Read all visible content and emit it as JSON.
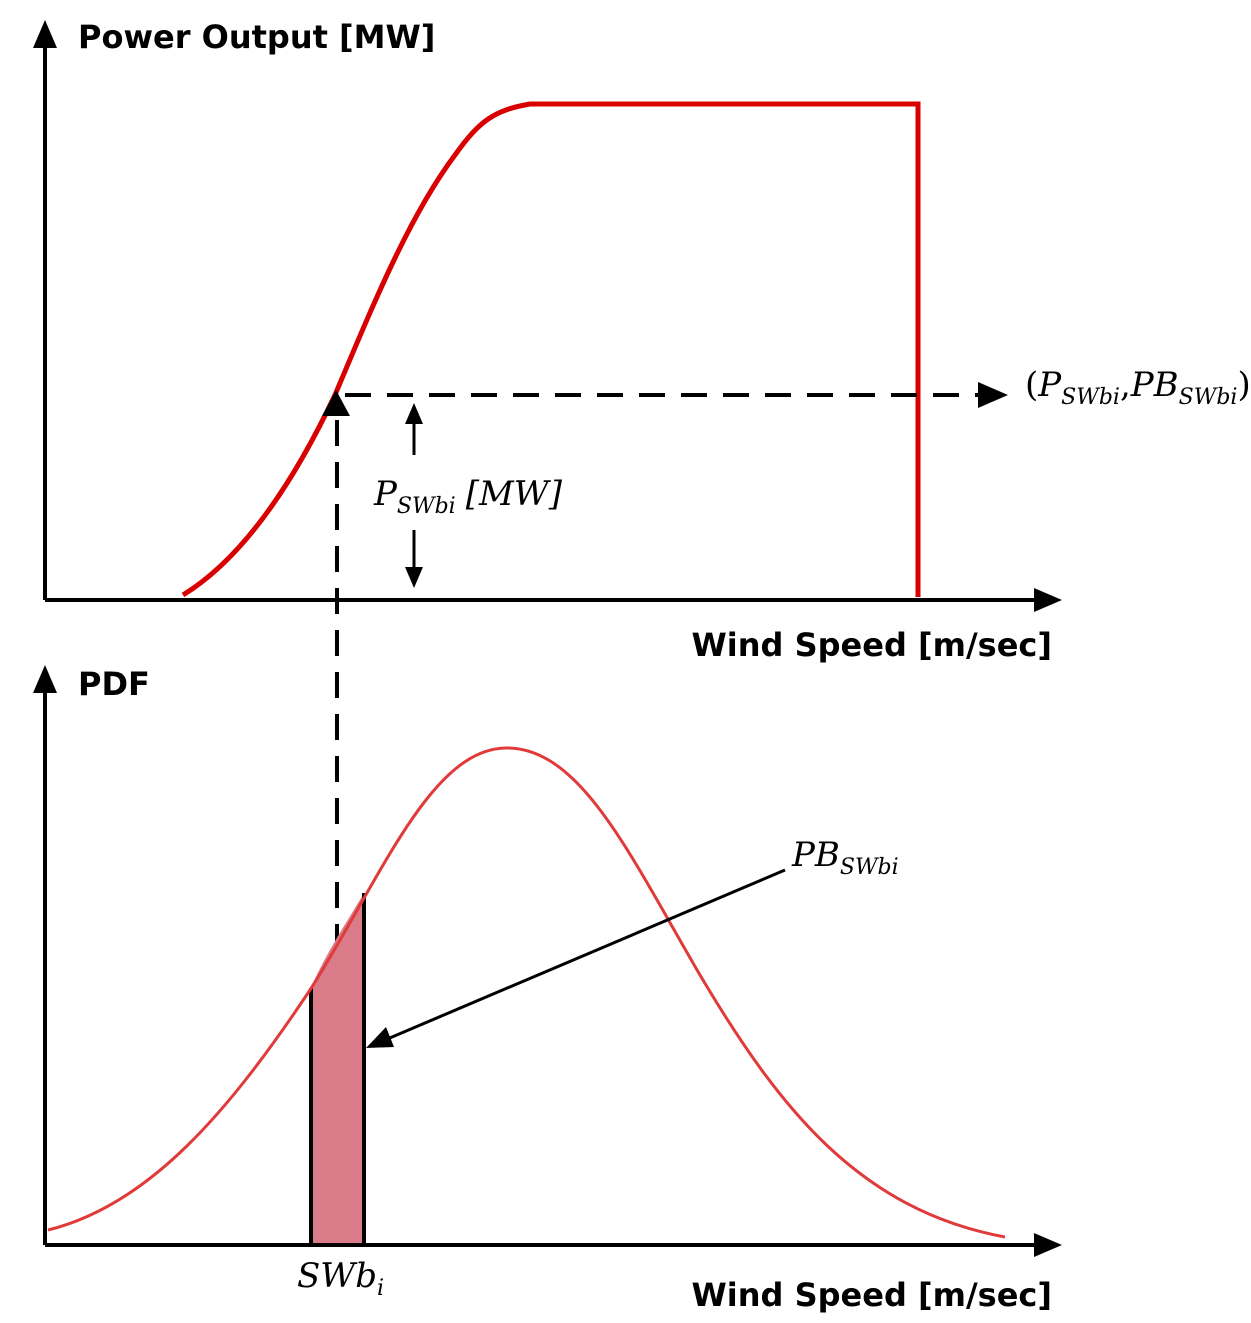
{
  "top_panel": {
    "y_axis_label": "Power Output [MW]",
    "x_axis_label": "Wind Speed [m/sec]",
    "power_annotation": {
      "main": "P",
      "sub": "SWbi",
      "unit": "[MW]"
    },
    "point_label": {
      "open": "(",
      "p": "P",
      "p_sub": "SWbi",
      "comma": ",",
      "pb": "PB",
      "pb_sub": "SWbi",
      "close": ")"
    }
  },
  "bottom_panel": {
    "y_axis_label": "PDF",
    "x_axis_label": "Wind Speed [m/sec]",
    "probability_label": {
      "main": "PB",
      "sub": "SWbi"
    },
    "bin_label": {
      "main": "SWb",
      "sub": "i"
    }
  },
  "colors": {
    "curve": "#d80000",
    "pdf_curve": "#e03a3a",
    "bin_fill": "#d97b88",
    "axes": "#000000"
  }
}
